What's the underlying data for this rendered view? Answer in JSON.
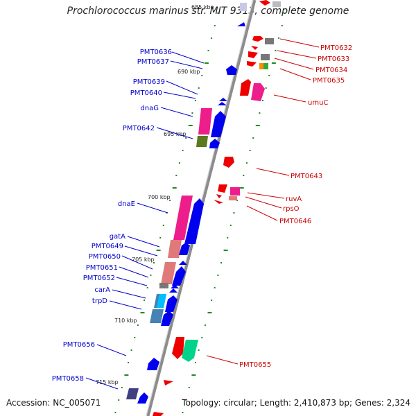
{
  "title": "Prochlorococcus marinus str. MIT 9313, complete genome",
  "accession": "Accession: NC_005071",
  "topology": "Topology: circular; Length: 2,410,873 bp; Genes: 2,324",
  "colors": {
    "backbone": "#8c8c8c",
    "scale_ticks": "#1e8c1e",
    "left_labels": "#0000cc",
    "right_labels": "#cc0000",
    "forward_gene": "#0000ee",
    "reverse_gene": "#ee0000"
  },
  "kbp_marks": [
    "685 kbp",
    "690 kbp",
    "695 kbp",
    "700 kbp",
    "705 kbp",
    "710 kbp",
    "715 kbp"
  ],
  "left_genes": [
    "PMT0636",
    "PMT0637",
    "PMT0639",
    "PMT0640",
    "dnaG",
    "PMT0642",
    "dnaE",
    "gatA",
    "PMT0649",
    "PMT0650",
    "PMT0651",
    "PMT0652",
    "carA",
    "trpD",
    "PMT0656",
    "PMT0658"
  ],
  "right_genes": [
    "PMT0632",
    "PMT0633",
    "PMT0634",
    "PMT0635",
    "umuC",
    "PMT0643",
    "ruvA",
    "rpsO",
    "PMT0646",
    "PMT0655"
  ]
}
